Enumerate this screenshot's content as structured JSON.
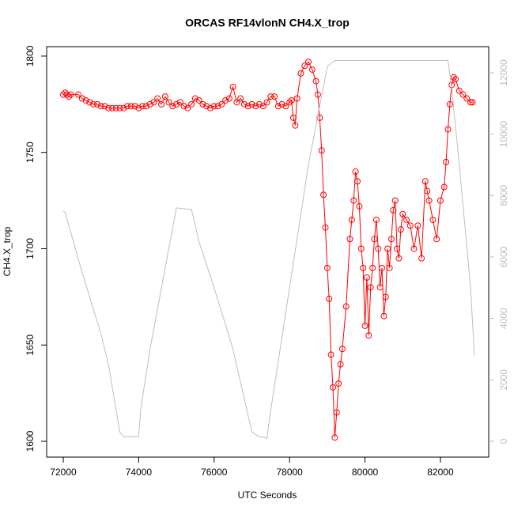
{
  "chart_data": {
    "type": "line",
    "title": "ORCAS RF14vlonN CH4.X_trop",
    "xlabel": "UTC Seconds",
    "ylabel": "CH4.X_trop",
    "xlim": [
      71560,
      83280
    ],
    "xticks": [
      72000,
      74000,
      76000,
      78000,
      80000,
      82000
    ],
    "ylim": [
      1591.8,
      1804.9
    ],
    "yticks": [
      1600,
      1650,
      1700,
      1750,
      1800
    ],
    "y2lim": [
      -515,
      12850
    ],
    "y2ticks": [
      0,
      2000,
      4000,
      6000,
      8000,
      10000,
      12000
    ],
    "series": [
      {
        "name": "CH4.X_trop",
        "color": "#ff0000",
        "marker": "circle",
        "x": [
          72000,
          72050,
          72100,
          72150,
          72200,
          72400,
          72500,
          72600,
          72700,
          72800,
          72900,
          73000,
          73100,
          73200,
          73300,
          73400,
          73500,
          73600,
          73700,
          73800,
          73900,
          74000,
          74100,
          74200,
          74300,
          74400,
          74500,
          74600,
          74700,
          74800,
          74900,
          75000,
          75100,
          75200,
          75300,
          75400,
          75500,
          75600,
          75700,
          75800,
          75900,
          76000,
          76100,
          76200,
          76300,
          76400,
          76500,
          76600,
          76700,
          76800,
          76900,
          77000,
          77100,
          77200,
          77300,
          77400,
          77500,
          77600,
          77700,
          77800,
          77900,
          78000,
          78050,
          78100,
          78150,
          78200,
          78300,
          78400,
          78500,
          78600,
          78700,
          78750,
          78800,
          78850,
          78900,
          78950,
          79000,
          79050,
          79100,
          79150,
          79200,
          79250,
          79300,
          79350,
          79400,
          79500,
          79600,
          79650,
          79700,
          79750,
          79800,
          79850,
          79900,
          79950,
          80000,
          80050,
          80100,
          80150,
          80200,
          80250,
          80300,
          80350,
          80400,
          80450,
          80500,
          80550,
          80600,
          80650,
          80700,
          80750,
          80800,
          80850,
          80900,
          80950,
          81000,
          81100,
          81200,
          81300,
          81400,
          81500,
          81600,
          81650,
          81700,
          81800,
          81900,
          82000,
          82100,
          82150,
          82200,
          82250,
          82300,
          82350,
          82400,
          82500,
          82600,
          82700,
          82800,
          82850
        ],
        "values": [
          1780,
          1781,
          1780,
          1779,
          1780,
          1780,
          1778,
          1777,
          1776,
          1775,
          1775,
          1774,
          1774,
          1773,
          1773,
          1773,
          1773,
          1773,
          1774,
          1774,
          1774,
          1773,
          1774,
          1774,
          1775,
          1776,
          1778,
          1775,
          1779,
          1776,
          1774,
          1775,
          1776,
          1774,
          1773,
          1775,
          1778,
          1777,
          1775,
          1774,
          1773,
          1774,
          1774,
          1775,
          1777,
          1778,
          1784,
          1776,
          1778,
          1775,
          1774,
          1775,
          1774,
          1775,
          1774,
          1776,
          1779,
          1779,
          1774,
          1775,
          1774,
          1776,
          1777,
          1768,
          1764,
          1778,
          1791,
          1795,
          1797,
          1793,
          1787,
          1780,
          1768,
          1751,
          1728,
          1711,
          1690,
          1674,
          1645,
          1628,
          1602,
          1615,
          1630,
          1640,
          1648,
          1670,
          1705,
          1715,
          1725,
          1740,
          1735,
          1722,
          1700,
          1690,
          1660,
          1685,
          1655,
          1680,
          1690,
          1705,
          1715,
          1700,
          1680,
          1690,
          1665,
          1675,
          1700,
          1690,
          1705,
          1720,
          1725,
          1700,
          1695,
          1710,
          1718,
          1715,
          1712,
          1700,
          1712,
          1695,
          1735,
          1730,
          1725,
          1715,
          1705,
          1725,
          1732,
          1745,
          1762,
          1775,
          1785,
          1789,
          1788,
          1782,
          1780,
          1778,
          1776,
          1776
        ]
      },
      {
        "color": "#bebebe",
        "axis": "y2",
        "x": [
          72000,
          72050,
          72200,
          72500,
          73000,
          73200,
          73500,
          73600,
          74000,
          74050,
          74300,
          75000,
          75400,
          75600,
          76000,
          76500,
          77000,
          77200,
          77400,
          77500,
          78000,
          78500,
          79000,
          79200,
          82200,
          82300,
          82500,
          82800,
          82900
        ],
        "values": [
          7500,
          7450,
          6800,
          5500,
          3500,
          2500,
          300,
          150,
          150,
          1000,
          3000,
          7600,
          7550,
          6500,
          5000,
          3000,
          300,
          150,
          100,
          1000,
          5000,
          9000,
          12200,
          12400,
          12400,
          11500,
          9000,
          5000,
          2800
        ]
      }
    ]
  }
}
